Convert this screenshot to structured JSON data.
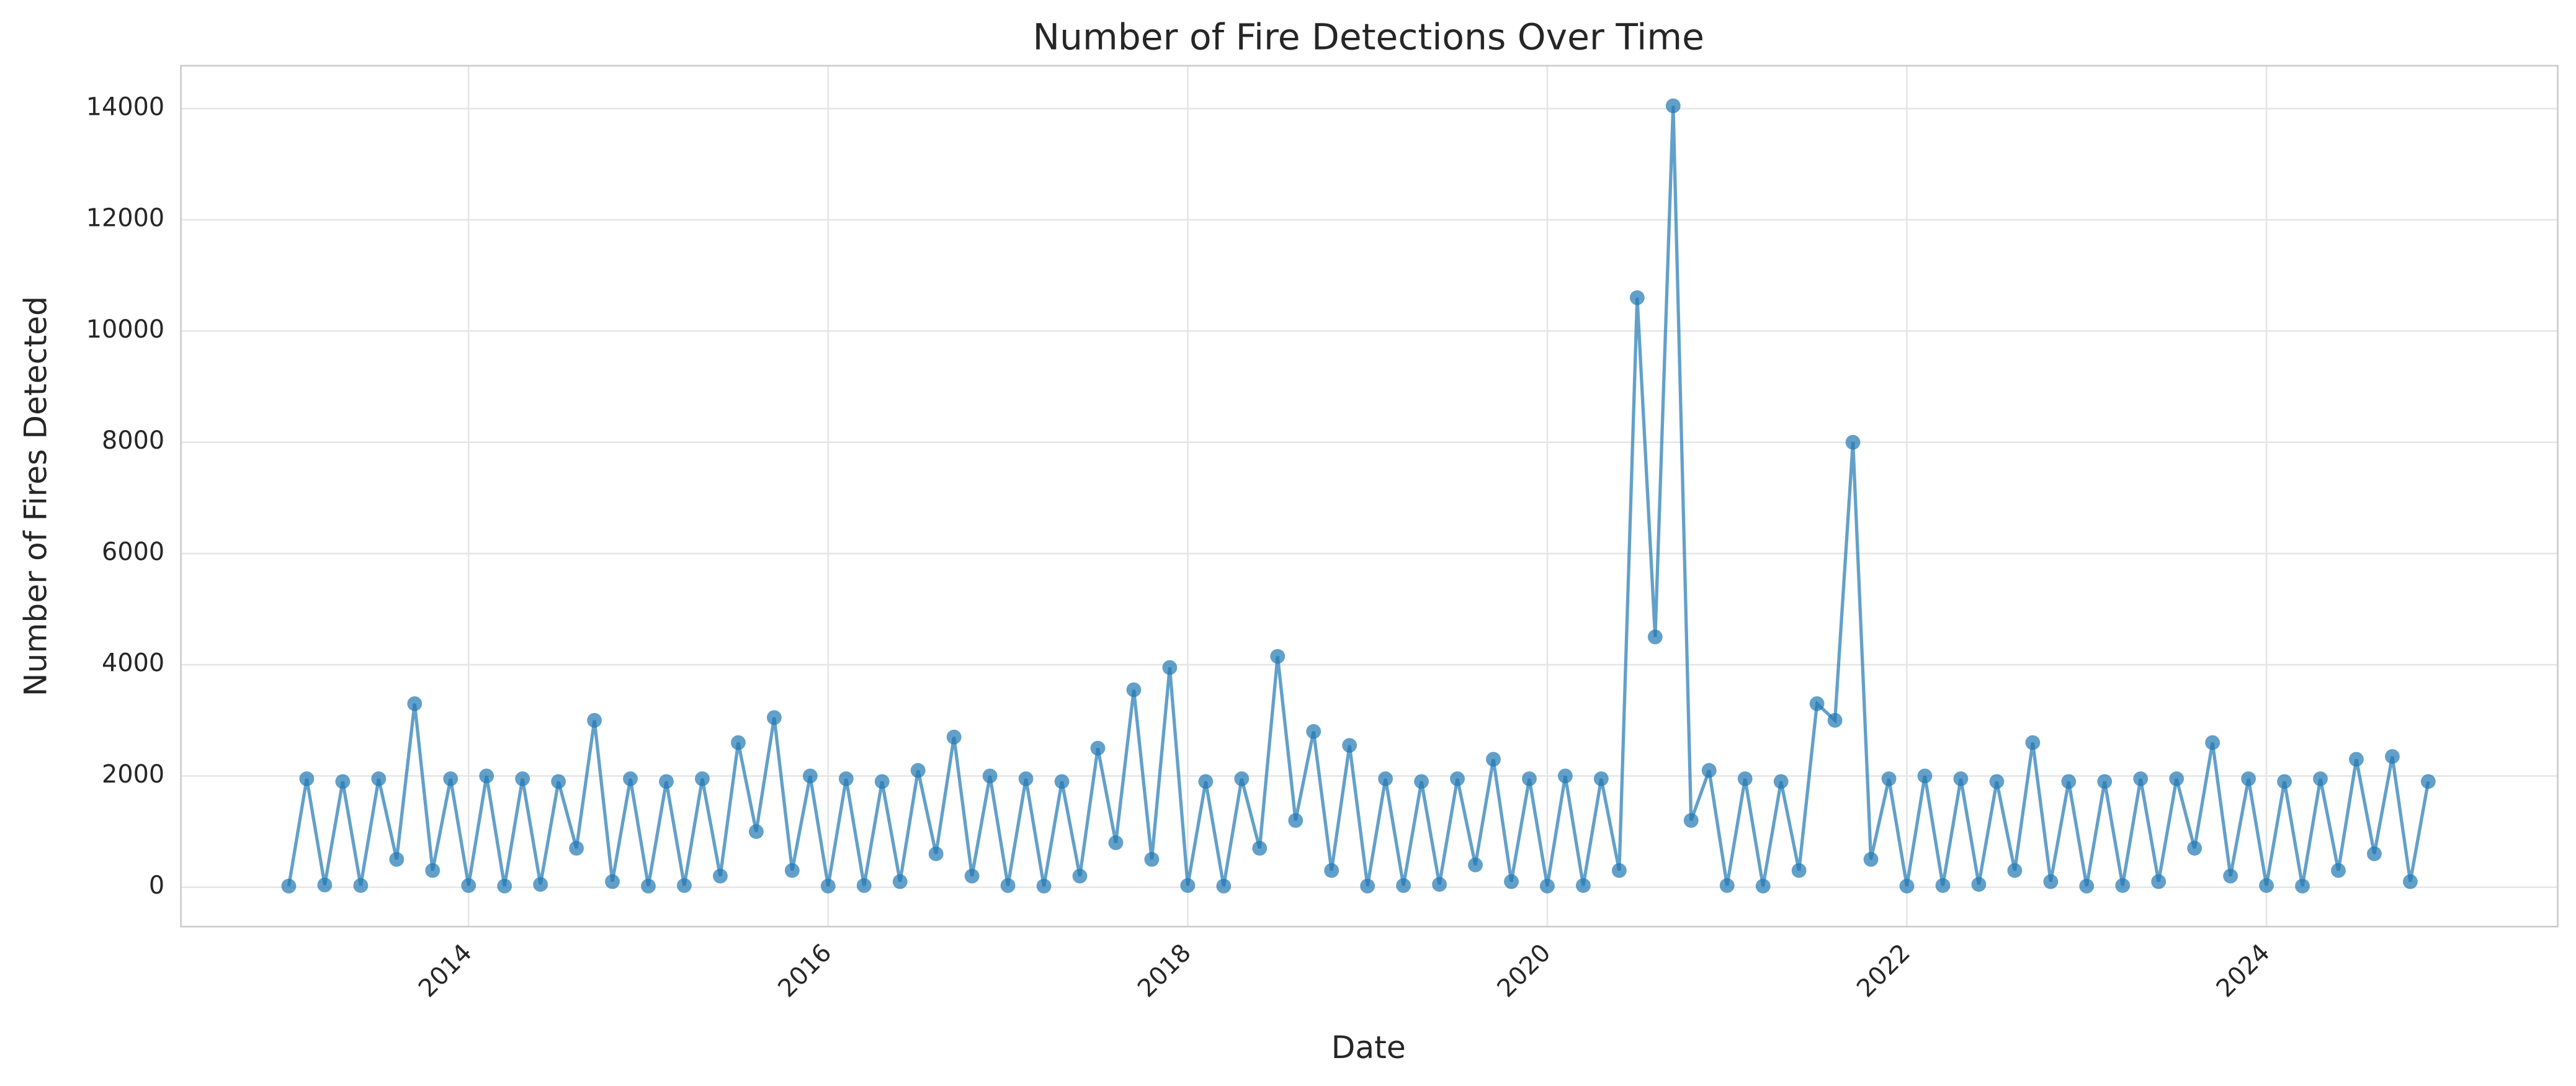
{
  "chart_data": {
    "type": "line",
    "title": "Number of Fire Detections Over Time",
    "x_label": "Date",
    "y_label": "Number of Fires Detected",
    "x": [
      2013.0,
      2013.1,
      2013.2,
      2013.3,
      2013.4,
      2013.5,
      2013.6,
      2013.7,
      2013.8,
      2013.9,
      2014.0,
      2014.1,
      2014.2,
      2014.3,
      2014.4,
      2014.5,
      2014.6,
      2014.7,
      2014.8,
      2014.9,
      2015.0,
      2015.1,
      2015.2,
      2015.3,
      2015.4,
      2015.5,
      2015.6,
      2015.7,
      2015.8,
      2015.9,
      2016.0,
      2016.1,
      2016.2,
      2016.3,
      2016.4,
      2016.5,
      2016.6,
      2016.7,
      2016.8,
      2016.9,
      2017.0,
      2017.1,
      2017.2,
      2017.3,
      2017.4,
      2017.5,
      2017.6,
      2017.7,
      2017.8,
      2017.9,
      2018.0,
      2018.1,
      2018.2,
      2018.3,
      2018.4,
      2018.5,
      2018.6,
      2018.7,
      2018.8,
      2018.9,
      2019.0,
      2019.1,
      2019.2,
      2019.3,
      2019.4,
      2019.5,
      2019.6,
      2019.7,
      2019.8,
      2019.9,
      2020.0,
      2020.1,
      2020.2,
      2020.3,
      2020.4,
      2020.5,
      2020.6,
      2020.7,
      2020.8,
      2020.9,
      2021.0,
      2021.1,
      2021.2,
      2021.3,
      2021.4,
      2021.5,
      2021.6,
      2021.7,
      2021.8,
      2021.9,
      2022.0,
      2022.1,
      2022.2,
      2022.3,
      2022.4,
      2022.5,
      2022.6,
      2022.7,
      2022.8,
      2022.9,
      2023.0,
      2023.1,
      2023.2,
      2023.3,
      2023.4,
      2023.5,
      2023.6,
      2023.7,
      2023.8,
      2023.9,
      2024.0,
      2024.1,
      2024.2,
      2024.3,
      2024.4,
      2024.5,
      2024.6,
      2024.7,
      2024.8,
      2024.9
    ],
    "series": [
      {
        "color": "#1f77b4",
        "values": [
          20,
          1950,
          40,
          1900,
          30,
          1950,
          500,
          3300,
          300,
          1950,
          30,
          2000,
          20,
          1950,
          50,
          1900,
          700,
          3000,
          100,
          1950,
          20,
          1900,
          30,
          1950,
          200,
          2600,
          1000,
          3050,
          300,
          2000,
          20,
          1950,
          30,
          1900,
          100,
          2100,
          600,
          2700,
          200,
          2000,
          30,
          1950,
          20,
          1900,
          200,
          2500,
          800,
          3550,
          500,
          3950,
          30,
          1900,
          20,
          1950,
          700,
          4150,
          1200,
          2800,
          300,
          2550,
          20,
          1950,
          30,
          1900,
          50,
          1950,
          400,
          2300,
          100,
          1950,
          20,
          2000,
          30,
          1950,
          300,
          10600,
          4500,
          14050,
          1200,
          2100,
          30,
          1950,
          20,
          1900,
          300,
          3300,
          3000,
          8000,
          500,
          1950,
          20,
          2000,
          30,
          1950,
          50,
          1900,
          300,
          2600,
          100,
          1900,
          20,
          1900,
          30,
          1950,
          100,
          1950,
          700,
          2600,
          200,
          1950,
          30,
          1900,
          20,
          1950,
          300,
          2300,
          600,
          2350,
          100,
          1900
        ]
      }
    ],
    "xlim": [
      2012.4,
      2025.62
    ],
    "xticks": [
      2014,
      2016,
      2018,
      2020,
      2022,
      2024
    ],
    "ylim": [
      -709,
      14771
    ],
    "yticks": [
      0,
      2000,
      4000,
      6000,
      8000,
      10000,
      12000,
      14000
    ],
    "grid": true
  }
}
